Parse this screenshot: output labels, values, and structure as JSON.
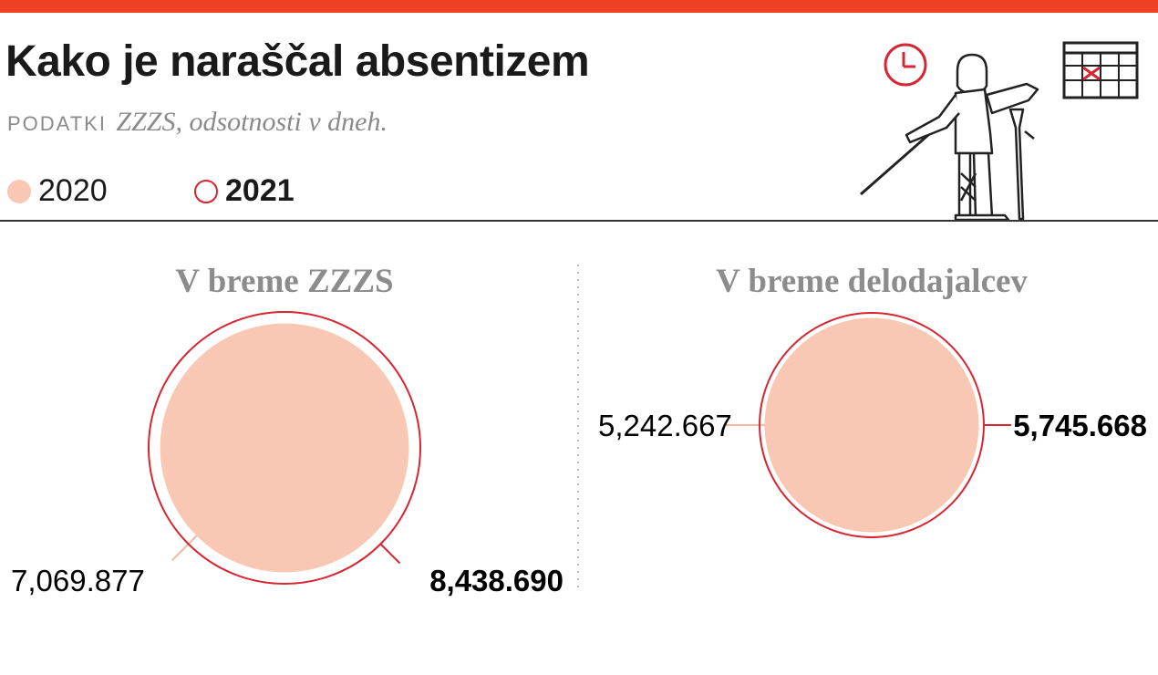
{
  "header": {
    "title": "Kako je naraščal absentizem",
    "source_label": "PODATKI",
    "source_text": "ZZZS, odsotnosti v dneh."
  },
  "legend": {
    "items": [
      {
        "label": "2020",
        "style": "filled",
        "color": "#f8c8b4"
      },
      {
        "label": "2021",
        "style": "outline",
        "color": "#d62631"
      }
    ]
  },
  "colors": {
    "topbar": "#ee4123",
    "fill_2020": "#f8c8b4",
    "stroke_2021": "#d62631",
    "leader_2020": "#f3b9a4"
  },
  "illustration": {
    "icons": [
      "clock-icon",
      "injured-person-with-crutch-illustration",
      "calendar-icon"
    ]
  },
  "chart_data": [
    {
      "type": "bubble",
      "title": "V breme ZZZS",
      "series": [
        {
          "name": "2020",
          "value": 7069.877,
          "label": "7,069.877"
        },
        {
          "name": "2021",
          "value": 8438.69,
          "label": "8,438.690"
        }
      ]
    },
    {
      "type": "bubble",
      "title": "V breme delodajalcev",
      "series": [
        {
          "name": "2020",
          "value": 5242.667,
          "label": "5,242.667"
        },
        {
          "name": "2021",
          "value": 5745.668,
          "label": "5,745.668"
        }
      ]
    }
  ]
}
